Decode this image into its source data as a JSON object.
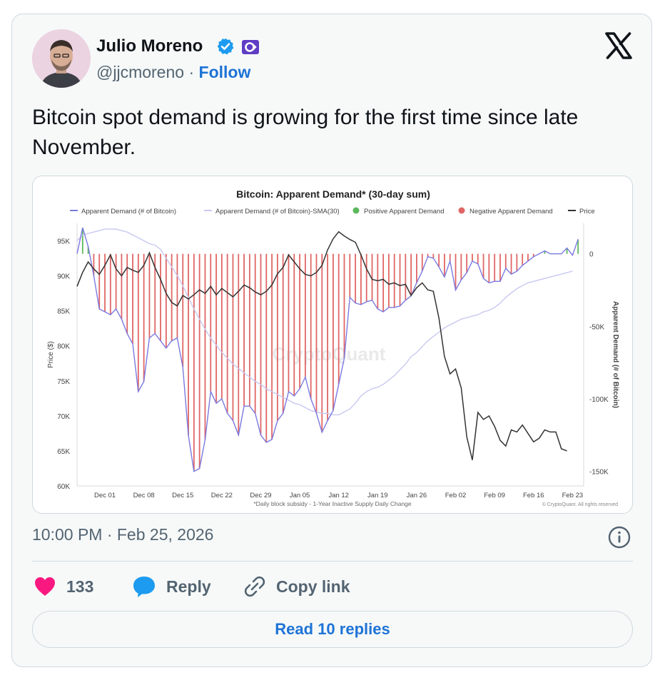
{
  "author": {
    "name": "Julio Moreno",
    "handle": "@jjcmoreno",
    "separator": "·",
    "follow_label": "Follow"
  },
  "tweet": {
    "text": "Bitcoin spot demand is growing for the first time since late November.",
    "timestamp": "10:00 PM · Feb 25, 2026"
  },
  "actions": {
    "like_count": "133",
    "reply_label": "Reply",
    "copy_label": "Copy link",
    "read_replies_label": "Read 10 replies"
  },
  "colors": {
    "link": "#1d73d6",
    "like": "#f91880",
    "reply": "#1d9bf0",
    "verified": "#1d9bf0",
    "negative_bar": "#e06666",
    "positive_bar": "#5cb85c",
    "demand_line": "#7a7ae0",
    "sma_line": "#c8c8f0",
    "price_line": "#333333"
  },
  "icons": [
    "verified-badge-icon",
    "affiliate-badge-icon",
    "x-logo-icon",
    "info-icon",
    "heart-icon",
    "reply-bubble-icon",
    "link-icon"
  ],
  "chart_data": {
    "type": "line",
    "title": "Bitcoin: Apparent Demand* (30-day sum)",
    "ylabel": "Price ($)",
    "y2label": "Apparent Demand (# of Bitcoin)",
    "footnote": "*Daily block subsidy - 1-Year Inactive Supply Daily Change",
    "credit": "© CryptoQuant. All rights reserved",
    "watermark": "CryptoQuant",
    "legend_position": "top",
    "legend": [
      "Apparent Demand (# of Bitcoin)",
      "Apparent Demand (# of Bitcoin)-SMA(30)",
      "Positive Apparent Demand",
      "Negative Apparent Demand",
      "Price"
    ],
    "x_ticks": [
      "Dec 01",
      "Dec 08",
      "Dec 15",
      "Dec 22",
      "Dec 29",
      "Jan 05",
      "Jan 12",
      "Jan 19",
      "Jan 26",
      "Feb 02",
      "Feb 09",
      "Feb 16",
      "Feb 23"
    ],
    "x_tick_day_index": [
      5,
      12,
      19,
      26,
      33,
      40,
      47,
      54,
      61,
      68,
      75,
      82,
      89
    ],
    "y_left_ticks": [
      60000,
      65000,
      70000,
      75000,
      80000,
      85000,
      90000,
      95000
    ],
    "y_left_tick_labels": [
      "60K",
      "65K",
      "70K",
      "75K",
      "80K",
      "85K",
      "90K",
      "95K"
    ],
    "y_left_range": [
      60000,
      97500
    ],
    "y_right_ticks": [
      0,
      -50000,
      -100000,
      -150000
    ],
    "y_right_tick_labels": [
      "0",
      "-50K",
      "-100K",
      "-150K"
    ],
    "y_right_range": [
      -160000,
      21000
    ],
    "day_range": [
      0,
      91
    ],
    "grid": false,
    "series": [
      {
        "name": "Price",
        "axis": "left",
        "values": [
          88500,
          90500,
          92000,
          91000,
          90200,
          91500,
          93000,
          91000,
          90000,
          91200,
          90800,
          90500,
          91500,
          93300,
          91200,
          89500,
          87500,
          86200,
          85700,
          87200,
          86700,
          87300,
          88000,
          87500,
          88500,
          87300,
          88200,
          87600,
          87000,
          87800,
          88700,
          88300,
          87700,
          87300,
          87800,
          88700,
          90300,
          91200,
          93000,
          92000,
          91000,
          90200,
          90000,
          90500,
          91500,
          93700,
          95300,
          96300,
          95700,
          95200,
          94800,
          93000,
          91000,
          89500,
          89300,
          89500,
          88800,
          89000,
          88600,
          88800,
          87200,
          88300,
          89000,
          88000,
          87800,
          84000,
          78500,
          76000,
          76700,
          74000,
          67000,
          63700,
          70500,
          69500,
          70000,
          68500,
          66500,
          65700,
          68000,
          67700,
          68700,
          67500,
          66300,
          66800,
          68000,
          67700,
          67700,
          65300,
          65000
        ]
      },
      {
        "name": "Apparent Demand (# of Bitcoin)",
        "axis": "right",
        "values": [
          0,
          18000,
          5000,
          -15000,
          -38000,
          -40000,
          -42000,
          -38000,
          -45000,
          -55000,
          -62000,
          -95000,
          -88000,
          -58000,
          -55000,
          -60000,
          -65000,
          -60000,
          -58000,
          -78000,
          -125000,
          -150000,
          -148000,
          -128000,
          -95000,
          -103000,
          -100000,
          -110000,
          -115000,
          -125000,
          -105000,
          -105000,
          -110000,
          -125000,
          -130000,
          -128000,
          -115000,
          -110000,
          -95000,
          -98000,
          -93000,
          -85000,
          -100000,
          -110000,
          -123000,
          -115000,
          -108000,
          -90000,
          -72000,
          -30000,
          -34000,
          -35000,
          -33000,
          -32000,
          -38000,
          -40000,
          -37000,
          -37000,
          -36000,
          -32000,
          -29000,
          -20000,
          -12000,
          -2000,
          -3000,
          -9000,
          -16000,
          -5000,
          -25000,
          -18000,
          -13000,
          -5000,
          -7000,
          -17000,
          -20000,
          -19000,
          -19000,
          -10000,
          -14000,
          -12000,
          -8000,
          -5000,
          -2000,
          0,
          2000,
          0,
          0,
          0,
          4000,
          -1000,
          10000
        ]
      },
      {
        "name": "Apparent Demand (# of Bitcoin)-SMA(30)",
        "axis": "right",
        "values": [
          9000,
          13000,
          14000,
          15000,
          16000,
          17000,
          17000,
          17000,
          16000,
          15000,
          13000,
          11000,
          9000,
          7000,
          6000,
          3000,
          -3000,
          -9000,
          -15000,
          -22000,
          -30000,
          -38000,
          -45000,
          -52000,
          -58000,
          -63000,
          -68000,
          -72000,
          -76000,
          -79000,
          -82000,
          -85000,
          -88000,
          -90000,
          -93000,
          -95000,
          -97000,
          -99000,
          -101000,
          -103000,
          -104000,
          -106000,
          -108000,
          -109000,
          -110000,
          -110000,
          -111000,
          -111000,
          -109000,
          -107000,
          -103000,
          -98000,
          -95000,
          -93000,
          -92000,
          -90000,
          -87000,
          -84000,
          -80000,
          -76000,
          -71000,
          -68000,
          -64000,
          -60000,
          -57000,
          -54000,
          -51000,
          -49000,
          -47000,
          -45000,
          -44000,
          -43000,
          -42000,
          -40000,
          -39000,
          -37000,
          -34000,
          -30000,
          -27000,
          -24000,
          -22000,
          -20000,
          -19000,
          -18000,
          -17000,
          -16000,
          -15000,
          -14000,
          -13000,
          -12000
        ]
      }
    ]
  }
}
